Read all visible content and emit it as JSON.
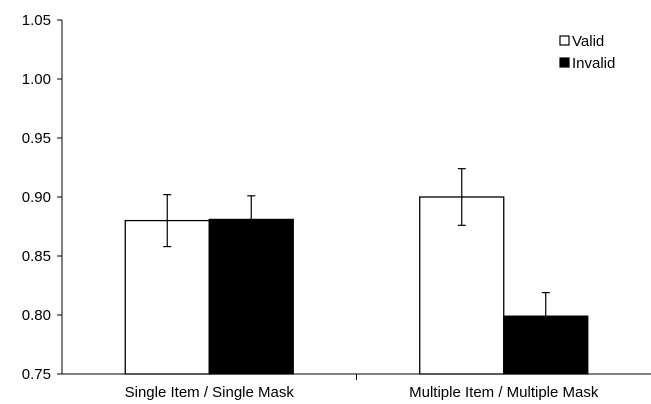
{
  "chart_data": {
    "type": "bar",
    "title": "",
    "xlabel": "",
    "ylabel": "",
    "categories": [
      "Single Item / Single Mask",
      "Multiple Item / Multiple Mask"
    ],
    "series": [
      {
        "name": "Valid",
        "values": [
          0.88,
          0.9
        ],
        "errors": [
          0.022,
          0.024
        ],
        "color": "#ffffff"
      },
      {
        "name": "Invalid",
        "values": [
          0.881,
          0.799
        ],
        "errors": [
          0.02,
          0.02
        ],
        "color": "#000000"
      }
    ],
    "ylim": [
      0.75,
      1.05
    ],
    "yticks": [
      "0.75",
      "0.80",
      "0.85",
      "0.90",
      "0.95",
      "1.00",
      "1.05"
    ],
    "grid": false,
    "legend_position": "top-right"
  }
}
